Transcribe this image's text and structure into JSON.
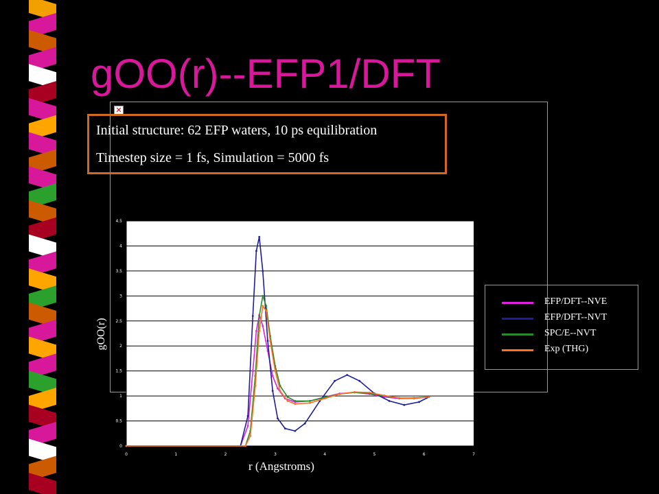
{
  "slide": {
    "title": "gOO(r)--EFP1/DFT",
    "info_line1": "Initial structure: 62 EFP waters, 10 ps equilibration",
    "info_line2": "Timestep size = 1 fs, Simulation = 5000 fs",
    "broken_image_icon": "broken-image-icon",
    "stripe_colors": [
      "#f2a000",
      "#d8189a",
      "#cc5a00",
      "#d8189a",
      "#ffffff",
      "#a80020",
      "#d8189a",
      "#ffa500",
      "#d8189a",
      "#cc5a00",
      "#d8189a",
      "#2ca02c",
      "#cc5a00",
      "#a80020",
      "#ffffff",
      "#d8189a",
      "#ffa500",
      "#2ca02c",
      "#cc5a00",
      "#d8189a",
      "#ffa500",
      "#d8189a",
      "#2ca02c",
      "#ffa500",
      "#a80020",
      "#d8189a",
      "#ffffff",
      "#cc5a00",
      "#a80020"
    ]
  },
  "chart_data": {
    "type": "line",
    "xlabel": "r (Angstroms)",
    "ylabel": "gOO(r)",
    "xlim": [
      0,
      7
    ],
    "ylim": [
      0,
      4.5
    ],
    "x_ticks": [
      "0",
      "1",
      "2",
      "3",
      "4",
      "5",
      "6",
      "7"
    ],
    "y_ticks": [
      "0",
      "0.5",
      "1",
      "1.5",
      "2",
      "2.5",
      "3",
      "3.5",
      "4",
      "4.5"
    ],
    "grid": "horizontal",
    "legend_position": "right",
    "series": [
      {
        "name": "EFP/DFT--NVE",
        "color": "#e020e0",
        "x": [
          0,
          2.3,
          2.45,
          2.55,
          2.62,
          2.68,
          2.75,
          2.85,
          2.95,
          3.05,
          3.2,
          3.4,
          3.7,
          4.0,
          4.3,
          4.6,
          4.9,
          5.2,
          5.5,
          5.8,
          6.1
        ],
        "y": [
          0,
          0,
          0.4,
          1.5,
          2.3,
          2.62,
          2.4,
          1.9,
          1.4,
          1.15,
          0.95,
          0.88,
          0.9,
          0.98,
          1.05,
          1.07,
          1.04,
          0.98,
          0.95,
          0.95,
          0.98
        ]
      },
      {
        "name": "EFP/DFT--NVT",
        "color": "#1c1c9c",
        "x": [
          0,
          2.3,
          2.45,
          2.55,
          2.62,
          2.68,
          2.75,
          2.85,
          2.95,
          3.05,
          3.2,
          3.4,
          3.6,
          3.9,
          4.2,
          4.45,
          4.7,
          5.0,
          5.3,
          5.6,
          5.9,
          6.1
        ],
        "y": [
          0,
          0,
          0.6,
          2.6,
          3.9,
          4.18,
          3.5,
          2.1,
          1.1,
          0.55,
          0.35,
          0.3,
          0.45,
          0.9,
          1.3,
          1.42,
          1.3,
          1.05,
          0.9,
          0.82,
          0.88,
          0.98
        ]
      },
      {
        "name": "SPC/E--NVT",
        "color": "#2a8a2a",
        "x": [
          0,
          2.4,
          2.5,
          2.6,
          2.68,
          2.75,
          2.82,
          2.9,
          3.0,
          3.1,
          3.25,
          3.4,
          3.7,
          4.0,
          4.3,
          4.6,
          4.9,
          5.2,
          5.5,
          5.8,
          6.1
        ],
        "y": [
          0,
          0,
          0.3,
          1.4,
          2.6,
          3.0,
          2.8,
          2.2,
          1.6,
          1.2,
          0.98,
          0.9,
          0.9,
          0.97,
          1.04,
          1.07,
          1.05,
          1.0,
          0.96,
          0.96,
          0.98
        ]
      },
      {
        "name": "Exp (THG)",
        "color": "#ff7020",
        "x": [
          0,
          2.4,
          2.5,
          2.6,
          2.68,
          2.75,
          2.82,
          2.9,
          3.0,
          3.1,
          3.25,
          3.4,
          3.7,
          4.0,
          4.3,
          4.6,
          4.9,
          5.2,
          5.5,
          5.8,
          6.1
        ],
        "y": [
          0,
          0,
          0.2,
          1.2,
          2.3,
          2.8,
          2.7,
          2.1,
          1.5,
          1.1,
          0.9,
          0.84,
          0.86,
          0.95,
          1.04,
          1.08,
          1.07,
          1.01,
          0.96,
          0.95,
          0.98
        ]
      }
    ]
  }
}
